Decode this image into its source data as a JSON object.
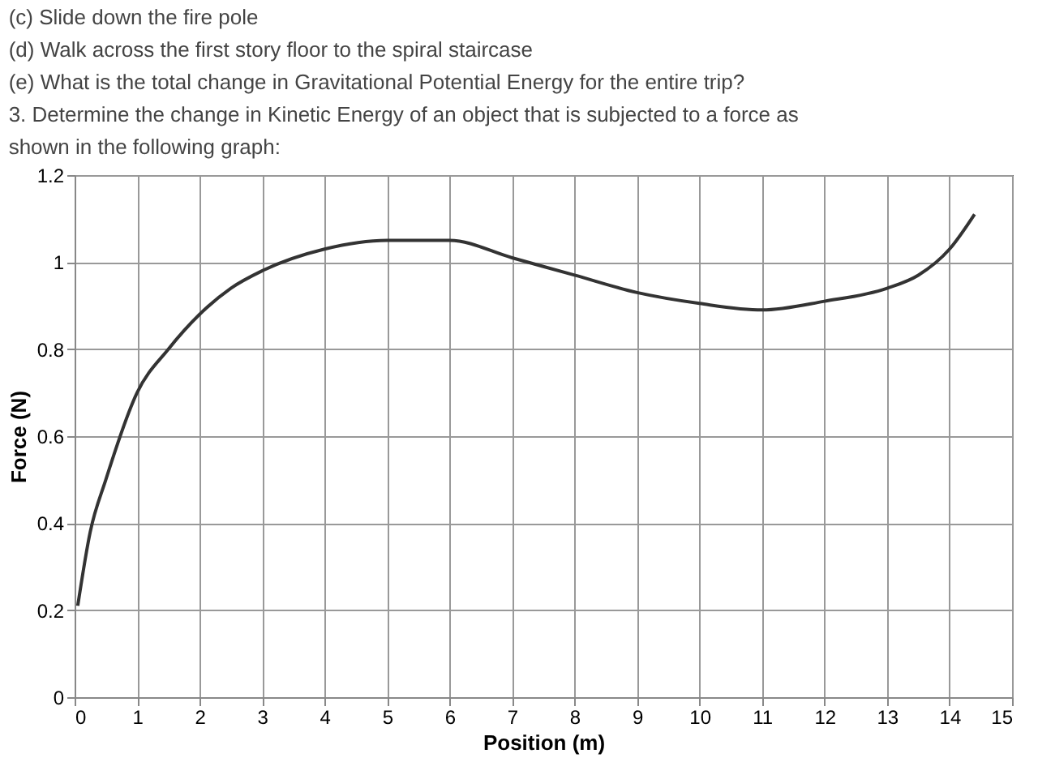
{
  "chart_data": {
    "type": "line",
    "title": "3. Determine the change in Kinetic Energy of an object that is subjected to a force as shown in the following graph:",
    "annotations": [
      "(c) Slide down the fire pole",
      "(d) Walk across the first story floor to the spiral staircase",
      "(e) What is the total change in Gravitational Potential Energy for the entire trip?"
    ],
    "xlabel": "Position (m)",
    "ylabel": "Force (N)",
    "series": [
      {
        "color": "#333333",
        "x": [
          0.05,
          0.25,
          0.5,
          1,
          1.5,
          2,
          2.5,
          3,
          4,
          5,
          6,
          7,
          8,
          9,
          10,
          11,
          12,
          13,
          13.5,
          14,
          14.4
        ],
        "values": [
          0.21,
          0.38,
          0.5,
          0.7,
          0.8,
          0.88,
          0.94,
          0.98,
          1.03,
          1.05,
          1.05,
          1.01,
          0.97,
          0.93,
          0.905,
          0.89,
          0.91,
          0.94,
          0.97,
          1.03,
          1.11
        ]
      }
    ],
    "xlim": [
      0,
      15
    ],
    "xticks": [
      0,
      1,
      2,
      3,
      4,
      5,
      6,
      7,
      8,
      9,
      10,
      11,
      12,
      13,
      14,
      15
    ],
    "ylim": [
      0,
      1.2
    ],
    "yticks": [
      0,
      0.2,
      0.4,
      0.6,
      0.8,
      1,
      1.2
    ],
    "grid": true,
    "marker": "none",
    "line_style": "solid"
  }
}
